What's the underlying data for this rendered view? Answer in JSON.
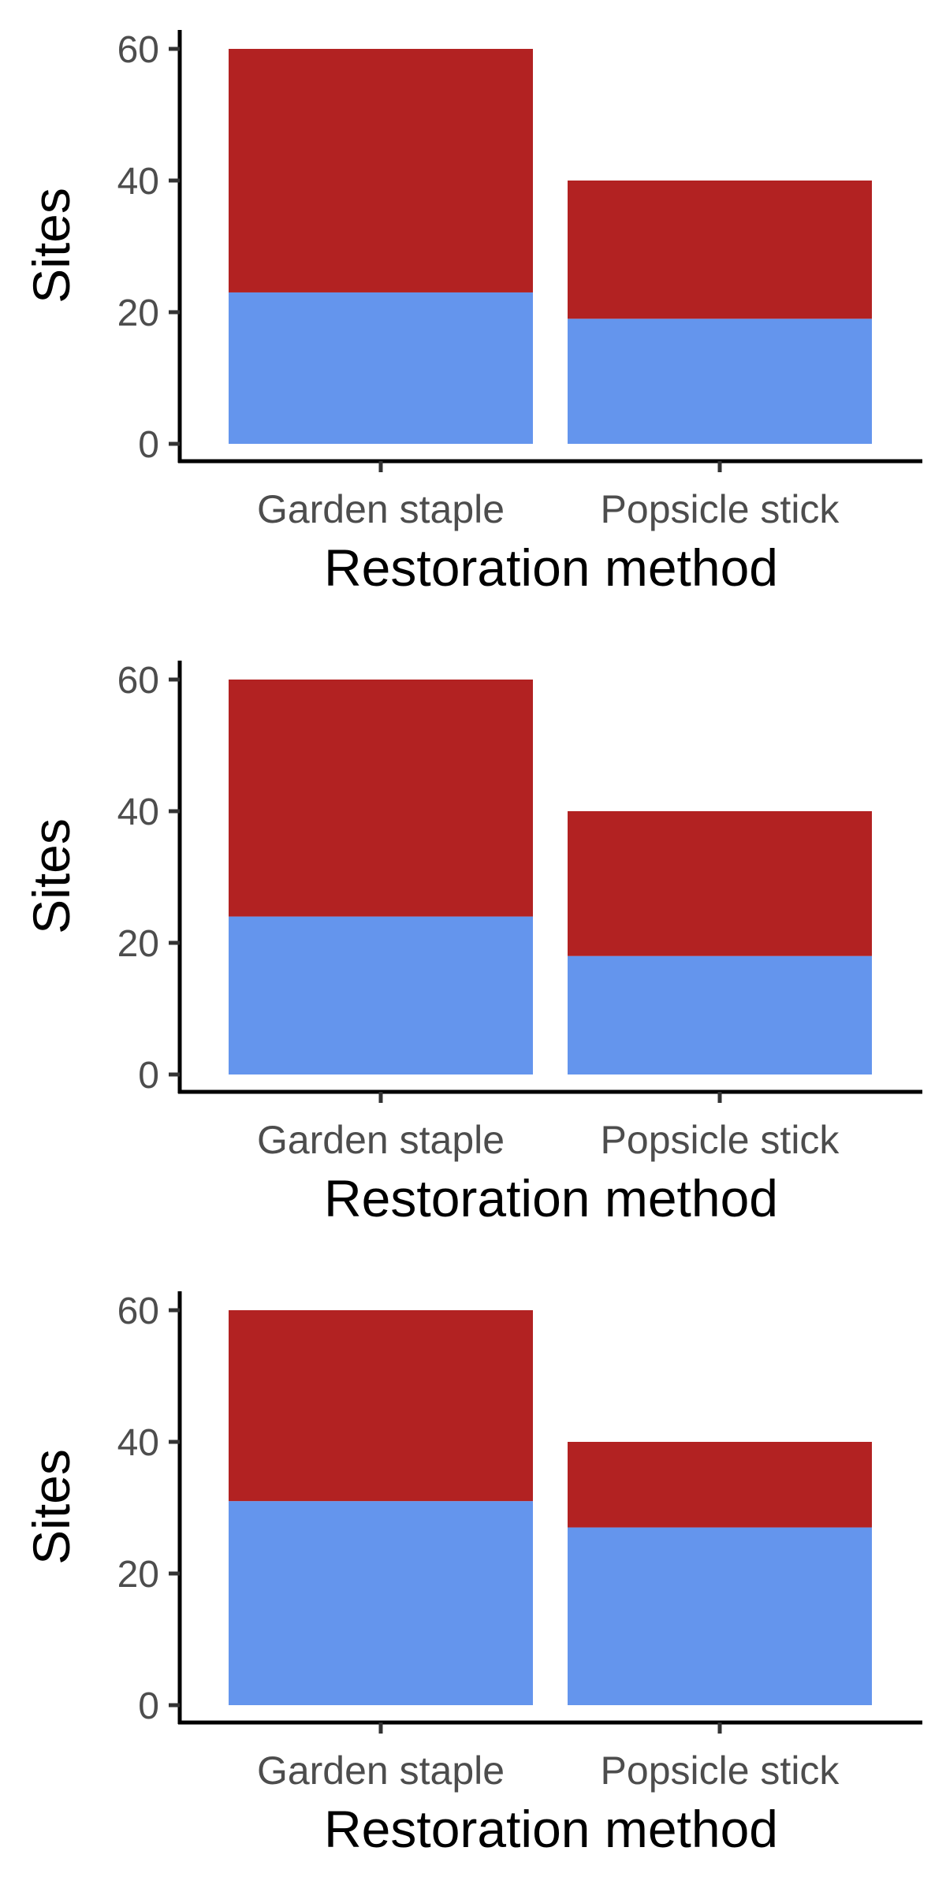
{
  "chart_data": [
    {
      "type": "bar",
      "stacked": true,
      "categories": [
        "Garden staple",
        "Popsicle stick"
      ],
      "series": [
        {
          "color": "#6495ED",
          "values": [
            23,
            19
          ]
        },
        {
          "color": "#B22222",
          "values": [
            37,
            21
          ]
        }
      ],
      "title": "",
      "xlabel": "Restoration method",
      "ylabel": "Sites",
      "ylim": [
        0,
        60
      ],
      "yticks": [
        0,
        20,
        40,
        60
      ],
      "grid": false,
      "legend": "none"
    },
    {
      "type": "bar",
      "stacked": true,
      "categories": [
        "Garden staple",
        "Popsicle stick"
      ],
      "series": [
        {
          "color": "#6495ED",
          "values": [
            24,
            18
          ]
        },
        {
          "color": "#B22222",
          "values": [
            36,
            22
          ]
        }
      ],
      "title": "",
      "xlabel": "Restoration method",
      "ylabel": "Sites",
      "ylim": [
        0,
        60
      ],
      "yticks": [
        0,
        20,
        40,
        60
      ],
      "grid": false,
      "legend": "none"
    },
    {
      "type": "bar",
      "stacked": true,
      "categories": [
        "Garden staple",
        "Popsicle stick"
      ],
      "series": [
        {
          "color": "#6495ED",
          "values": [
            31,
            27
          ]
        },
        {
          "color": "#B22222",
          "values": [
            29,
            13
          ]
        }
      ],
      "title": "",
      "xlabel": "Restoration method",
      "ylabel": "Sites",
      "ylim": [
        0,
        60
      ],
      "yticks": [
        0,
        20,
        40,
        60
      ],
      "grid": false,
      "legend": "none"
    }
  ]
}
